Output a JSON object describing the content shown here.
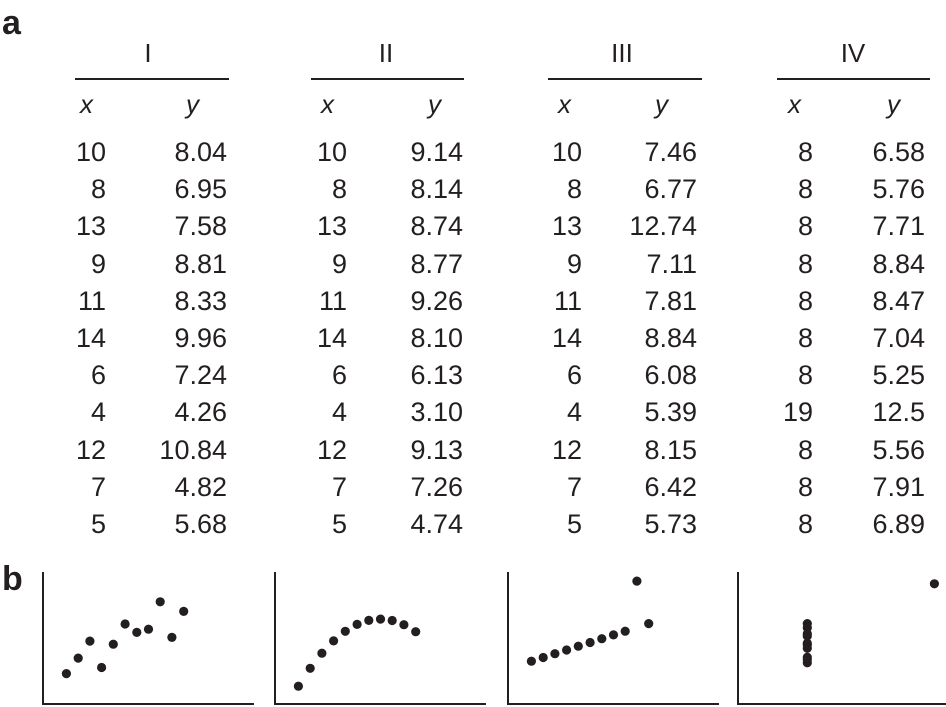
{
  "panel_a_label": "a",
  "panel_b_label": "b",
  "chart_data": [
    {
      "type": "table",
      "datasets": [
        {
          "name": "I",
          "x": [
            10,
            8,
            13,
            9,
            11,
            14,
            6,
            4,
            12,
            7,
            5
          ],
          "y": [
            "8.04",
            "6.95",
            "7.58",
            "8.81",
            "8.33",
            "9.96",
            "7.24",
            "4.26",
            "10.84",
            "4.82",
            "5.68"
          ]
        },
        {
          "name": "II",
          "x": [
            10,
            8,
            13,
            9,
            11,
            14,
            6,
            4,
            12,
            7,
            5
          ],
          "y": [
            "9.14",
            "8.14",
            "8.74",
            "8.77",
            "9.26",
            "8.10",
            "6.13",
            "3.10",
            "9.13",
            "7.26",
            "4.74"
          ]
        },
        {
          "name": "III",
          "x": [
            10,
            8,
            13,
            9,
            11,
            14,
            6,
            4,
            12,
            7,
            5
          ],
          "y": [
            "7.46",
            "6.77",
            "12.74",
            "7.11",
            "7.81",
            "8.84",
            "6.08",
            "5.39",
            "8.15",
            "6.42",
            "5.73"
          ]
        },
        {
          "name": "IV",
          "x": [
            8,
            8,
            8,
            8,
            8,
            8,
            8,
            19,
            8,
            8,
            8
          ],
          "y": [
            "6.58",
            "5.76",
            "7.71",
            "8.84",
            "8.47",
            "7.04",
            "5.25",
            "12.5",
            "5.56",
            "7.91",
            "6.89"
          ]
        }
      ],
      "column_headers": {
        "x": "x",
        "y": "y"
      }
    },
    {
      "type": "scatter",
      "plots": [
        {
          "points": [
            [
              10,
              8.04
            ],
            [
              8,
              6.95
            ],
            [
              13,
              7.58
            ],
            [
              9,
              8.81
            ],
            [
              11,
              8.33
            ],
            [
              14,
              9.96
            ],
            [
              6,
              7.24
            ],
            [
              4,
              4.26
            ],
            [
              12,
              10.84
            ],
            [
              7,
              4.82
            ],
            [
              5,
              5.68
            ]
          ]
        },
        {
          "points": [
            [
              10,
              9.14
            ],
            [
              8,
              8.14
            ],
            [
              13,
              8.74
            ],
            [
              9,
              8.77
            ],
            [
              11,
              9.26
            ],
            [
              14,
              8.1
            ],
            [
              6,
              6.13
            ],
            [
              4,
              3.1
            ],
            [
              12,
              9.13
            ],
            [
              7,
              7.26
            ],
            [
              5,
              4.74
            ]
          ]
        },
        {
          "points": [
            [
              10,
              7.46
            ],
            [
              8,
              6.77
            ],
            [
              13,
              12.74
            ],
            [
              9,
              7.11
            ],
            [
              11,
              7.81
            ],
            [
              14,
              8.84
            ],
            [
              6,
              6.08
            ],
            [
              4,
              5.39
            ],
            [
              12,
              8.15
            ],
            [
              7,
              6.42
            ],
            [
              5,
              5.73
            ]
          ]
        },
        {
          "points": [
            [
              8,
              6.58
            ],
            [
              8,
              5.76
            ],
            [
              8,
              7.71
            ],
            [
              8,
              8.84
            ],
            [
              8,
              8.47
            ],
            [
              8,
              7.04
            ],
            [
              8,
              5.25
            ],
            [
              19,
              12.5
            ],
            [
              8,
              5.56
            ],
            [
              8,
              7.91
            ],
            [
              8,
              6.89
            ]
          ]
        }
      ],
      "xlim": [
        2,
        20
      ],
      "ylim": [
        2,
        14
      ],
      "grid": false,
      "point_color": "#231f20",
      "axis_color": "#231f20"
    }
  ]
}
